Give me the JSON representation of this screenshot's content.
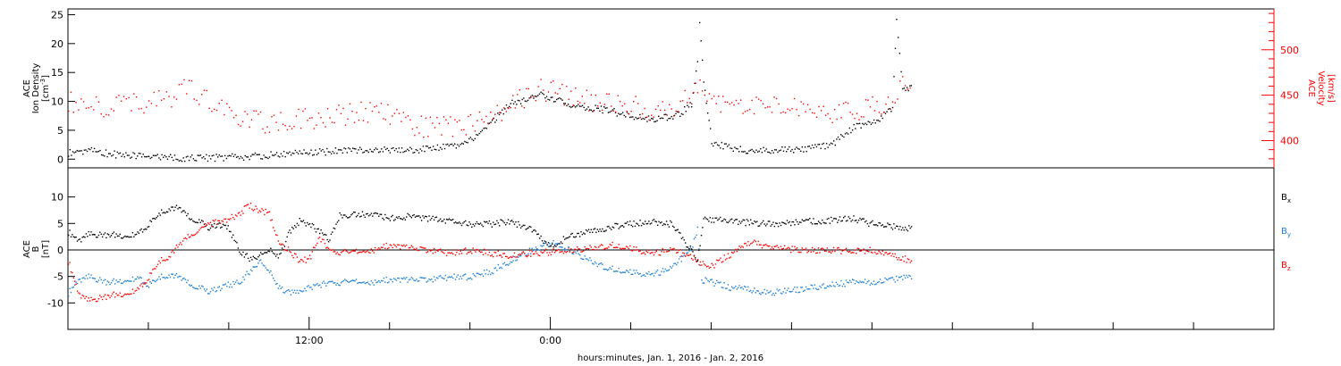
{
  "chart_data": [
    {
      "type": "scatter",
      "panel": "top",
      "ylabel_left": [
        "ACE",
        "Ion Density",
        "[cm",
        "-3",
        "]"
      ],
      "ylabel_right": [
        "ACE",
        "Velocity",
        "[km/s]"
      ],
      "ylim_left": [
        -1.5,
        26
      ],
      "ylim_right": [
        370,
        545
      ],
      "yticks_left": [
        0,
        5,
        10,
        15,
        20,
        25
      ],
      "yticks_right": [
        400,
        450,
        500
      ],
      "yticks_right_labels": [
        "400",
        "450",
        "500"
      ],
      "series": [
        {
          "axis": "left",
          "color": "#000000",
          "points": [
            [
              0.0,
              1.2
            ],
            [
              0.5,
              1.5
            ],
            [
              1.0,
              1.6
            ],
            [
              1.5,
              1.3
            ],
            [
              2.0,
              1.0
            ],
            [
              3.0,
              0.8
            ],
            [
              4.0,
              0.6
            ],
            [
              5.0,
              0.4
            ],
            [
              6.0,
              0.3
            ],
            [
              7.0,
              0.3
            ],
            [
              8.0,
              0.4
            ],
            [
              9.0,
              0.6
            ],
            [
              10.0,
              0.8
            ],
            [
              11.0,
              1.0
            ],
            [
              12.0,
              1.2
            ],
            [
              13.0,
              1.4
            ],
            [
              14.0,
              1.6
            ],
            [
              15.0,
              1.7
            ],
            [
              16.0,
              1.7
            ],
            [
              16.3,
              1.4
            ],
            [
              17.0,
              1.6
            ],
            [
              18.0,
              1.9
            ],
            [
              19.0,
              2.3
            ],
            [
              20.0,
              3.4
            ],
            [
              20.8,
              5.5
            ],
            [
              21.5,
              8.0
            ],
            [
              22.0,
              9.6
            ],
            [
              23.0,
              11.0
            ],
            [
              23.5,
              11.5
            ],
            [
              24.0,
              10.6
            ],
            [
              25.0,
              9.6
            ],
            [
              26.0,
              9.0
            ],
            [
              27.0,
              8.4
            ],
            [
              28.0,
              7.5
            ],
            [
              29.0,
              7.0
            ],
            [
              30.0,
              7.5
            ],
            [
              30.5,
              8.2
            ],
            [
              31.0,
              9.5
            ],
            [
              31.3,
              17.0
            ],
            [
              31.4,
              24.0
            ],
            [
              31.6,
              14.0
            ],
            [
              32.0,
              3.0
            ],
            [
              33.0,
              2.0
            ],
            [
              34.0,
              1.5
            ],
            [
              35.0,
              1.6
            ],
            [
              36.0,
              1.8
            ],
            [
              37.0,
              2.0
            ],
            [
              38.0,
              2.5
            ],
            [
              38.5,
              4.0
            ],
            [
              39.0,
              5.5
            ],
            [
              39.5,
              6.0
            ],
            [
              40.0,
              6.5
            ],
            [
              40.5,
              7.5
            ],
            [
              41.0,
              9.0
            ],
            [
              41.2,
              24.0
            ],
            [
              41.5,
              12.0
            ],
            [
              42.0,
              13.0
            ]
          ]
        },
        {
          "axis": "right",
          "color": "#ff0000",
          "points": [
            [
              0.0,
              445
            ],
            [
              0.5,
              440
            ],
            [
              1.0,
              435
            ],
            [
              1.5,
              440
            ],
            [
              2.0,
              435
            ],
            [
              2.5,
              440
            ],
            [
              3.0,
              445
            ],
            [
              3.5,
              440
            ],
            [
              4.0,
              445
            ],
            [
              4.5,
              450
            ],
            [
              5.0,
              445
            ],
            [
              5.5,
              455
            ],
            [
              6.0,
              460
            ],
            [
              6.5,
              450
            ],
            [
              7.0,
              445
            ],
            [
              7.5,
              440
            ],
            [
              8.0,
              430
            ],
            [
              9.0,
              425
            ],
            [
              10.0,
              420
            ],
            [
              11.0,
              422
            ],
            [
              12.0,
              425
            ],
            [
              13.0,
              428
            ],
            [
              14.0,
              430
            ],
            [
              15.0,
              432
            ],
            [
              16.0,
              430
            ],
            [
              17.0,
              418
            ],
            [
              18.0,
              415
            ],
            [
              19.0,
              415
            ],
            [
              20.0,
              420
            ],
            [
              21.0,
              428
            ],
            [
              22.0,
              440
            ],
            [
              23.0,
              452
            ],
            [
              23.5,
              456
            ],
            [
              24.0,
              455
            ],
            [
              25.0,
              448
            ],
            [
              26.0,
              445
            ],
            [
              27.0,
              440
            ],
            [
              28.0,
              438
            ],
            [
              29.0,
              435
            ],
            [
              30.0,
              435
            ],
            [
              31.0,
              450
            ],
            [
              31.3,
              462
            ],
            [
              32.0,
              445
            ],
            [
              33.0,
              440
            ],
            [
              34.0,
              440
            ],
            [
              35.0,
              442
            ],
            [
              36.0,
              440
            ],
            [
              37.0,
              435
            ],
            [
              38.0,
              430
            ],
            [
              39.0,
              432
            ],
            [
              40.0,
              438
            ],
            [
              41.0,
              445
            ],
            [
              41.5,
              465
            ],
            [
              42.0,
              455
            ]
          ]
        }
      ]
    },
    {
      "type": "scatter",
      "panel": "bottom",
      "ylabel_left": [
        "ACE",
        "B",
        "[nT]"
      ],
      "ylim": [
        -15,
        15.5
      ],
      "yticks": [
        -10,
        -5,
        0,
        5,
        10
      ],
      "zero_line": true,
      "series": [
        {
          "name": "B",
          "sub": "x",
          "color": "#000000",
          "points": [
            [
              0.0,
              3.5
            ],
            [
              0.5,
              2.0
            ],
            [
              1.0,
              3.0
            ],
            [
              2.0,
              3.0
            ],
            [
              3.0,
              2.8
            ],
            [
              3.5,
              3.5
            ],
            [
              4.0,
              5.0
            ],
            [
              4.5,
              7.0
            ],
            [
              5.0,
              8.0
            ],
            [
              5.5,
              8.0
            ],
            [
              6.0,
              6.5
            ],
            [
              6.5,
              5.5
            ],
            [
              7.0,
              4.0
            ],
            [
              7.5,
              5.0
            ],
            [
              8.0,
              4.0
            ],
            [
              8.5,
              0.0
            ],
            [
              9.0,
              -1.5
            ],
            [
              9.5,
              -1.0
            ],
            [
              10.0,
              0.0
            ],
            [
              10.5,
              -1.0
            ],
            [
              11.0,
              3.5
            ],
            [
              11.5,
              5.5
            ],
            [
              12.0,
              5.0
            ],
            [
              12.5,
              3.5
            ],
            [
              13.0,
              2.0
            ],
            [
              13.5,
              6.5
            ],
            [
              14.0,
              6.8
            ],
            [
              15.0,
              6.8
            ],
            [
              16.0,
              6.0
            ],
            [
              17.0,
              6.5
            ],
            [
              18.0,
              6.0
            ],
            [
              19.0,
              5.5
            ],
            [
              20.0,
              5.0
            ],
            [
              21.0,
              5.0
            ],
            [
              22.0,
              5.5
            ],
            [
              23.0,
              4.0
            ],
            [
              24.0,
              0.5
            ],
            [
              25.0,
              3.0
            ],
            [
              26.0,
              3.5
            ],
            [
              27.0,
              4.5
            ],
            [
              28.0,
              5.0
            ],
            [
              29.0,
              5.5
            ],
            [
              30.0,
              5.0
            ],
            [
              31.0,
              0.0
            ],
            [
              31.3,
              -2.0
            ],
            [
              31.6,
              6.0
            ],
            [
              33.0,
              5.5
            ],
            [
              35.0,
              5.0
            ],
            [
              37.0,
              5.5
            ],
            [
              39.0,
              6.0
            ],
            [
              40.0,
              5.0
            ],
            [
              41.0,
              4.5
            ],
            [
              42.0,
              4.0
            ]
          ]
        },
        {
          "name": "B",
          "sub": "y",
          "color": "#1e7fd6",
          "points": [
            [
              0.0,
              -8.0
            ],
            [
              0.5,
              -5.5
            ],
            [
              1.0,
              -5.0
            ],
            [
              2.0,
              -6.0
            ],
            [
              3.0,
              -5.5
            ],
            [
              3.5,
              -5.0
            ],
            [
              4.0,
              -6.5
            ],
            [
              4.5,
              -5.0
            ],
            [
              5.0,
              -4.5
            ],
            [
              5.5,
              -5.0
            ],
            [
              6.0,
              -6.0
            ],
            [
              6.5,
              -7.0
            ],
            [
              7.0,
              -8.0
            ],
            [
              7.5,
              -7.0
            ],
            [
              8.0,
              -6.5
            ],
            [
              8.5,
              -6.0
            ],
            [
              9.0,
              -4.0
            ],
            [
              9.5,
              -2.0
            ],
            [
              10.0,
              -4.0
            ],
            [
              10.5,
              -7.0
            ],
            [
              11.0,
              -8.0
            ],
            [
              12.0,
              -7.0
            ],
            [
              13.0,
              -6.0
            ],
            [
              14.0,
              -6.0
            ],
            [
              15.0,
              -6.0
            ],
            [
              16.0,
              -5.5
            ],
            [
              17.0,
              -5.5
            ],
            [
              18.0,
              -5.5
            ],
            [
              19.0,
              -5.0
            ],
            [
              20.0,
              -5.0
            ],
            [
              21.0,
              -4.0
            ],
            [
              22.0,
              -2.0
            ],
            [
              23.0,
              0.0
            ],
            [
              24.0,
              1.5
            ],
            [
              25.0,
              0.0
            ],
            [
              26.0,
              -2.0
            ],
            [
              27.0,
              -3.5
            ],
            [
              28.0,
              -4.0
            ],
            [
              29.0,
              -4.5
            ],
            [
              30.0,
              -3.5
            ],
            [
              31.0,
              0.5
            ],
            [
              31.3,
              4.0
            ],
            [
              31.5,
              -5.5
            ],
            [
              33.0,
              -7.0
            ],
            [
              35.0,
              -8.0
            ],
            [
              37.0,
              -7.0
            ],
            [
              39.0,
              -6.0
            ],
            [
              40.0,
              -6.0
            ],
            [
              41.0,
              -5.5
            ],
            [
              42.0,
              -5.0
            ]
          ]
        },
        {
          "name": "B",
          "sub": "z",
          "color": "#ff0000",
          "points": [
            [
              0.0,
              -2.0
            ],
            [
              0.5,
              -8.0
            ],
            [
              1.0,
              -9.5
            ],
            [
              2.0,
              -8.5
            ],
            [
              3.0,
              -8.0
            ],
            [
              3.5,
              -7.0
            ],
            [
              4.0,
              -5.0
            ],
            [
              4.5,
              -2.0
            ],
            [
              5.0,
              -1.0
            ],
            [
              5.5,
              1.0
            ],
            [
              6.0,
              3.0
            ],
            [
              7.0,
              5.0
            ],
            [
              8.0,
              6.0
            ],
            [
              8.5,
              7.0
            ],
            [
              9.0,
              8.5
            ],
            [
              9.5,
              7.5
            ],
            [
              10.0,
              7.0
            ],
            [
              10.5,
              1.0
            ],
            [
              11.0,
              0.0
            ],
            [
              11.5,
              -2.0
            ],
            [
              12.0,
              -1.5
            ],
            [
              12.5,
              2.5
            ],
            [
              13.0,
              0.0
            ],
            [
              14.0,
              -0.5
            ],
            [
              15.0,
              0.0
            ],
            [
              16.0,
              1.0
            ],
            [
              17.0,
              0.5
            ],
            [
              18.0,
              0.0
            ],
            [
              19.0,
              -0.5
            ],
            [
              20.0,
              0.0
            ],
            [
              21.0,
              -0.5
            ],
            [
              22.0,
              -1.0
            ],
            [
              23.0,
              -0.5
            ],
            [
              24.0,
              -0.3
            ],
            [
              25.0,
              0.0
            ],
            [
              26.0,
              0.5
            ],
            [
              27.0,
              1.0
            ],
            [
              28.0,
              0.5
            ],
            [
              29.0,
              -0.5
            ],
            [
              30.0,
              0.0
            ],
            [
              31.0,
              -1.0
            ],
            [
              31.5,
              -2.5
            ],
            [
              32.0,
              -3.0
            ],
            [
              33.0,
              -0.5
            ],
            [
              34.0,
              1.5
            ],
            [
              35.0,
              0.5
            ],
            [
              37.0,
              0.0
            ],
            [
              39.0,
              0.0
            ],
            [
              40.0,
              0.0
            ],
            [
              41.0,
              -1.0
            ],
            [
              42.0,
              -2.0
            ]
          ]
        }
      ]
    }
  ],
  "xaxis": {
    "label": "hours:minutes, Jan.  1, 2016 - Jan.  2, 2016",
    "ticks": [
      {
        "x": 12,
        "label": "12:00"
      },
      {
        "x": 24,
        "label": "0:00"
      }
    ],
    "minor_ticks": [
      4,
      8,
      16,
      20,
      28,
      32,
      36,
      40,
      44,
      48,
      52,
      56
    ],
    "xlim": [
      0,
      60
    ]
  },
  "colors": {
    "black": "#000000",
    "red": "#ff0000",
    "blue": "#1e7fd6",
    "axes": "#000000"
  }
}
